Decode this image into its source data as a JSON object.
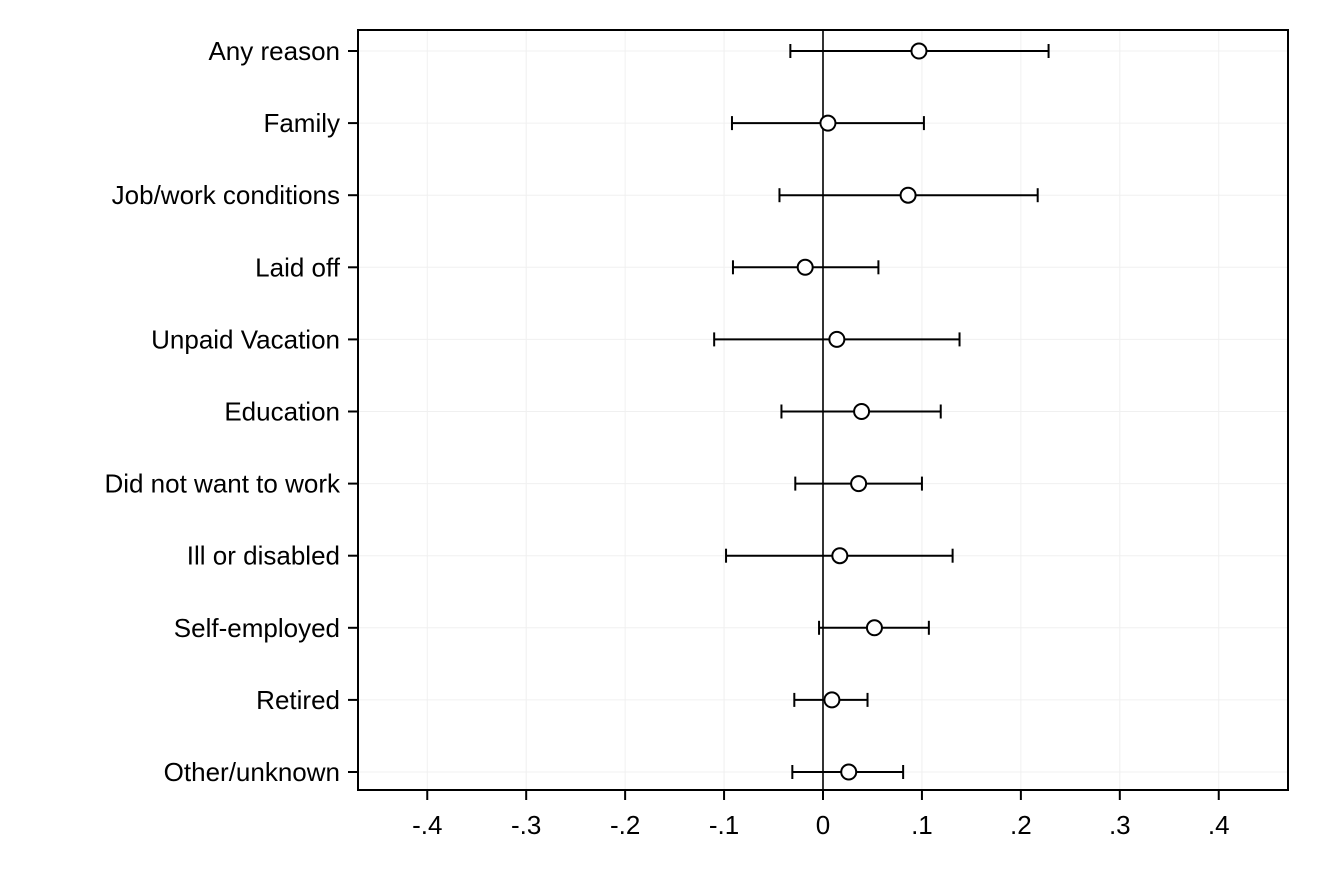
{
  "chart_data": {
    "type": "scatter",
    "subtype": "coefficient-plot",
    "orientation": "horizontal",
    "categories": [
      "Any reason",
      "Family",
      "Job/work conditions",
      "Laid off",
      "Unpaid Vacation",
      "Education",
      "Did not want to work",
      "Ill or disabled",
      "Self-employed",
      "Retired",
      "Other/unknown"
    ],
    "estimates": [
      0.097,
      0.005,
      0.086,
      -0.018,
      0.014,
      0.039,
      0.036,
      0.017,
      0.052,
      0.009,
      0.026
    ],
    "ci_low": [
      -0.033,
      -0.092,
      -0.044,
      -0.091,
      -0.11,
      -0.042,
      -0.028,
      -0.098,
      -0.004,
      -0.029,
      -0.031
    ],
    "ci_high": [
      0.228,
      0.102,
      0.217,
      0.056,
      0.138,
      0.119,
      0.1,
      0.131,
      0.107,
      0.045,
      0.081
    ],
    "xlim": [
      -0.47,
      0.47
    ],
    "xticks": [
      -0.4,
      -0.3,
      -0.2,
      -0.1,
      0,
      0.1,
      0.2,
      0.3,
      0.4
    ],
    "xtick_labels": [
      "-.4",
      "-.3",
      "-.2",
      "-.1",
      "0",
      ".1",
      ".2",
      ".3",
      ".4"
    ],
    "reference_line": 0,
    "grid": true,
    "marker": "hollow-circle",
    "colors": {
      "marks": "#000000",
      "grid": "#f0f0f0",
      "reference": "#333333"
    },
    "title": "",
    "xlabel": "",
    "ylabel": ""
  }
}
